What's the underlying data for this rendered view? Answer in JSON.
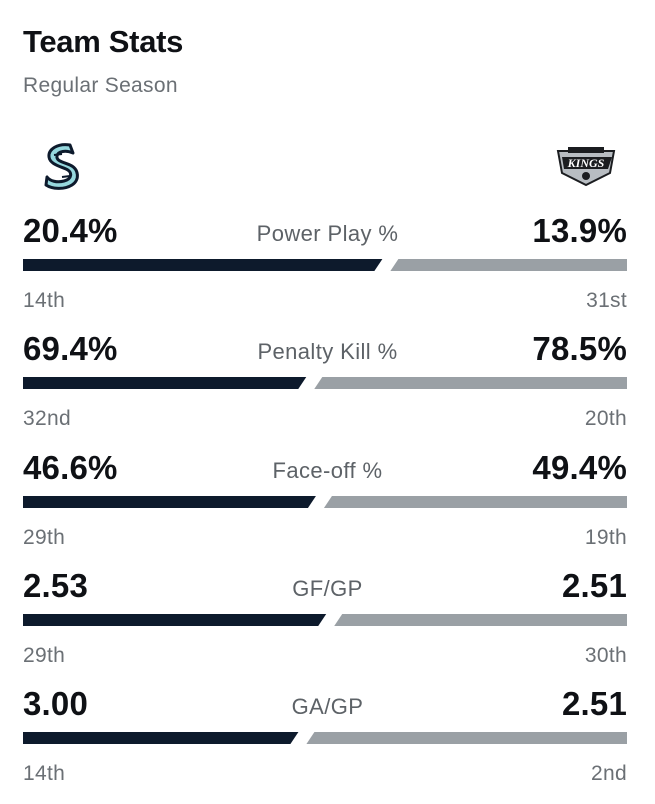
{
  "header": {
    "title": "Team Stats",
    "subtitle": "Regular Season"
  },
  "teams": {
    "left": {
      "logo_icon": "kraken-logo-icon",
      "color": "#0d1a2c"
    },
    "right": {
      "logo_icon": "kings-logo-icon",
      "logo_text": "KINGS",
      "color": "#9aa0a5"
    }
  },
  "stats": [
    {
      "label": "Power Play %",
      "left_value": "20.4%",
      "right_value": "13.9%",
      "left_rank": "14th",
      "right_rank": "31st",
      "left_share": 0.595
    },
    {
      "label": "Penalty Kill %",
      "left_value": "69.4%",
      "right_value": "78.5%",
      "left_rank": "32nd",
      "right_rank": "20th",
      "left_share": 0.469
    },
    {
      "label": "Face-off %",
      "left_value": "46.6%",
      "right_value": "49.4%",
      "left_rank": "29th",
      "right_rank": "19th",
      "left_share": 0.485
    },
    {
      "label": "GF/GP",
      "left_value": "2.53",
      "right_value": "2.51",
      "left_rank": "29th",
      "right_rank": "30th",
      "left_share": 0.502
    },
    {
      "label": "GA/GP",
      "left_value": "3.00",
      "right_value": "2.51",
      "left_rank": "14th",
      "right_rank": "2nd",
      "left_share": 0.456
    }
  ]
}
